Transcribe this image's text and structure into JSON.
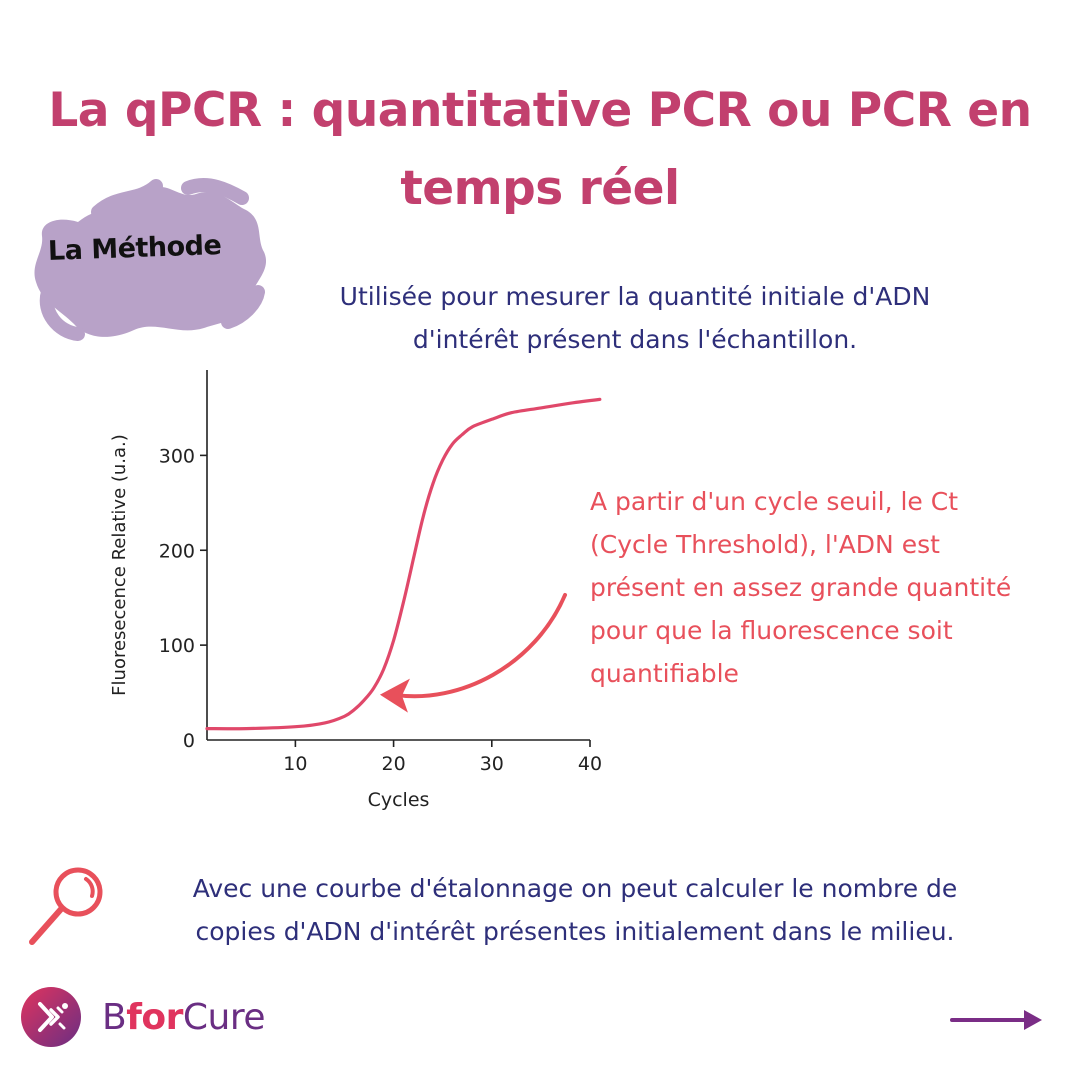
{
  "title": {
    "line1": "La qPCR : quantitative PCR ou PCR en",
    "line2": "temps réel"
  },
  "method_badge": {
    "label": "La Méthode"
  },
  "intro": {
    "line1": "Utilisée pour mesurer la quantité initiale d'ADN",
    "line2": "d'intérêt présent dans l'échantillon."
  },
  "chart_data": {
    "type": "line",
    "title": "",
    "xlabel": "Cycles",
    "ylabel": "Fluoresecence Relative (u.a.)",
    "xlim": [
      1,
      40
    ],
    "ylim": [
      0,
      390
    ],
    "xticks": [
      10,
      20,
      30,
      40
    ],
    "yticks": [
      0,
      100,
      200,
      300
    ],
    "grid": false,
    "series": [
      {
        "name": "Fluorescence",
        "color": "#e0486a",
        "x": [
          1,
          5,
          10,
          13,
          15,
          16,
          17,
          18,
          19,
          20,
          21,
          22,
          23,
          24,
          25,
          26,
          27,
          28,
          30,
          32,
          35,
          38,
          41
        ],
        "y": [
          12,
          12,
          14,
          18,
          25,
          32,
          42,
          55,
          75,
          105,
          145,
          190,
          235,
          270,
          295,
          312,
          322,
          330,
          338,
          345,
          350,
          355,
          359
        ]
      }
    ],
    "threshold_cycle": 18,
    "threshold_value": 52
  },
  "annotation": {
    "line1": "A partir d'un cycle seuil, le Ct",
    "line2": "(Cycle Threshold),  l'ADN est",
    "line3": "présent en assez grande quantité",
    "line4": "pour que la fluorescence soit",
    "line5": "quantifiable"
  },
  "footer": {
    "line1": "Avec une courbe d'étalonnage on peut calculer le nombre de",
    "line2": "copies d'ADN d'intérêt présentes initialement dans le milieu."
  },
  "brand": {
    "part1": "B",
    "part2": "for",
    "part3": "Cure"
  },
  "colors": {
    "title": "#c2406e",
    "text_navy": "#2e2f7a",
    "accent_red": "#e8505b",
    "curve": "#e0486a",
    "badge": "#b8a2c8",
    "brand_purple": "#6a2e83"
  },
  "icons": {
    "magnifier": "magnifier-icon",
    "logo": "bforcure-logo-icon",
    "next": "arrow-right-icon"
  }
}
